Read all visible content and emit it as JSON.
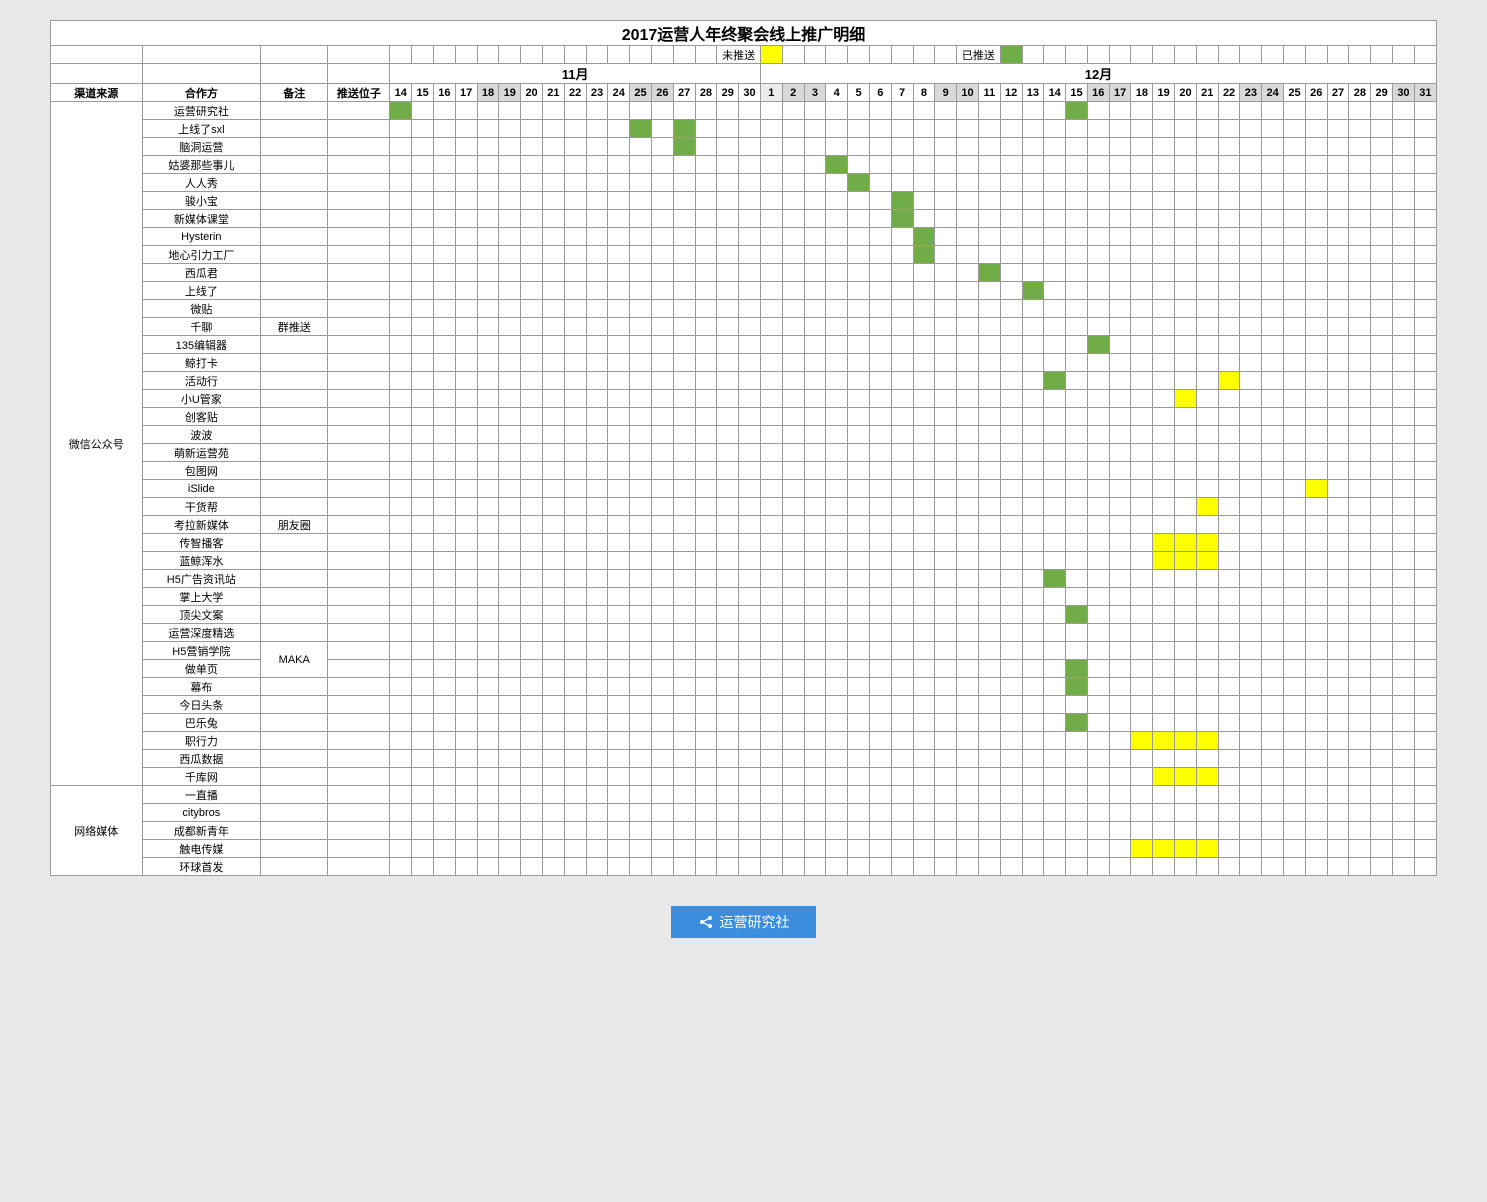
{
  "title": "2017运营人年终聚会线上推广明细",
  "legend": {
    "not_pushed": "未推送",
    "pushed": "已推送"
  },
  "months": {
    "nov": "11月",
    "dec": "12月"
  },
  "headers": {
    "source": "渠道来源",
    "partner": "合作方",
    "note": "备注",
    "push_slot": "推送位子"
  },
  "nov_days": [
    14,
    15,
    16,
    17,
    18,
    19,
    20,
    21,
    22,
    23,
    24,
    25,
    26,
    27,
    28,
    29,
    30
  ],
  "dec_days": [
    1,
    2,
    3,
    4,
    5,
    6,
    7,
    8,
    9,
    10,
    11,
    12,
    13,
    14,
    15,
    16,
    17,
    18,
    19,
    20,
    21,
    22,
    23,
    24,
    25,
    26,
    27,
    28,
    29,
    30,
    31
  ],
  "shade_days": [
    "11-18",
    "11-19",
    "11-25",
    "11-26",
    "12-2",
    "12-3",
    "12-9",
    "12-10",
    "12-16",
    "12-17",
    "12-23",
    "12-24",
    "12-30",
    "12-31"
  ],
  "shade_header_light": [
    "12-1"
  ],
  "groups": [
    {
      "source": "微信公众号",
      "rows": [
        {
          "partner": "运营研究社",
          "note": "",
          "cells": {
            "11-14": "green",
            "12-15": "green"
          }
        },
        {
          "partner": "上线了sxl",
          "note": "",
          "cells": {
            "11-25": "green",
            "11-27": "green"
          }
        },
        {
          "partner": "脑洞运营",
          "note": "",
          "cells": {
            "11-27": "green"
          }
        },
        {
          "partner": "姑婆那些事儿",
          "note": "",
          "cells": {
            "12-4": "green"
          }
        },
        {
          "partner": "人人秀",
          "note": "",
          "cells": {
            "12-5": "green"
          }
        },
        {
          "partner": "骏小宝",
          "note": "",
          "cells": {
            "12-7": "green"
          }
        },
        {
          "partner": "新媒体课堂",
          "note": "",
          "cells": {
            "12-7": "green"
          }
        },
        {
          "partner": "Hysterin",
          "note": "",
          "cells": {
            "12-8": "green"
          }
        },
        {
          "partner": "地心引力工厂",
          "note": "",
          "cells": {
            "12-8": "green"
          }
        },
        {
          "partner": "西瓜君",
          "note": "",
          "cells": {
            "12-11": "green"
          }
        },
        {
          "partner": "上线了",
          "note": "",
          "cells": {
            "12-13": "green"
          }
        },
        {
          "partner": "微贴",
          "note": "",
          "cells": {}
        },
        {
          "partner": "千聊",
          "note": "群推送",
          "cells": {}
        },
        {
          "partner": "135编辑器",
          "note": "",
          "cells": {
            "12-16": "green"
          }
        },
        {
          "partner": "鲸打卡",
          "note": "",
          "cells": {}
        },
        {
          "partner": "活动行",
          "note": "",
          "cells": {
            "12-14": "green",
            "12-22": "yellow"
          }
        },
        {
          "partner": "小U管家",
          "note": "",
          "cells": {
            "12-20": "yellow"
          }
        },
        {
          "partner": "创客贴",
          "note": "",
          "cells": {}
        },
        {
          "partner": "波波",
          "note": "",
          "cells": {}
        },
        {
          "partner": "萌新运营苑",
          "note": "",
          "cells": {}
        },
        {
          "partner": "包图网",
          "note": "",
          "cells": {}
        },
        {
          "partner": "iSlide",
          "note": "",
          "cells": {
            "12-26": "yellow"
          }
        },
        {
          "partner": "干货帮",
          "note": "",
          "cells": {
            "12-21": "yellow"
          }
        },
        {
          "partner": "考拉新媒体",
          "note": "朋友圈",
          "cells": {}
        },
        {
          "partner": "传智播客",
          "note": "",
          "cells": {
            "12-19": "yellow",
            "12-20": "yellow",
            "12-21": "yellow"
          }
        },
        {
          "partner": "蓝鲸浑水",
          "note": "",
          "cells": {
            "12-19": "yellow",
            "12-20": "yellow",
            "12-21": "yellow"
          }
        },
        {
          "partner": "H5广告资讯站",
          "note": "",
          "cells": {
            "12-14": "green"
          }
        },
        {
          "partner": "掌上大学",
          "note": "",
          "cells": {}
        },
        {
          "partner": "顶尖文案",
          "note": "",
          "cells": {
            "12-15": "green"
          }
        },
        {
          "partner": "运营深度精选",
          "note": "",
          "cells": {}
        },
        {
          "partner": "H5营销学院",
          "note": "MAKA",
          "note_rowspan": 2,
          "cells": {}
        },
        {
          "partner": "做单页",
          "note_skip": true,
          "cells": {
            "12-15": "green"
          }
        },
        {
          "partner": "幕布",
          "note": "",
          "cells": {
            "12-15": "green"
          }
        },
        {
          "partner": "今日头条",
          "note": "",
          "cells": {}
        },
        {
          "partner": "巴乐兔",
          "note": "",
          "cells": {
            "12-15": "green"
          }
        },
        {
          "partner": "职行力",
          "note": "",
          "cells": {
            "12-18": "yellow",
            "12-19": "yellow",
            "12-20": "yellow",
            "12-21": "yellow"
          }
        },
        {
          "partner": "西瓜数据",
          "note": "",
          "cells": {}
        },
        {
          "partner": "千库网",
          "note": "",
          "cells": {
            "12-19": "yellow",
            "12-20": "yellow",
            "12-21": "yellow"
          }
        }
      ]
    },
    {
      "source": "网络媒体",
      "rows": [
        {
          "partner": "一直播",
          "note": "",
          "cells": {}
        },
        {
          "partner": "citybros",
          "note": "",
          "cells": {}
        },
        {
          "partner": "成都新青年",
          "note": "",
          "cells": {}
        },
        {
          "partner": "触电传媒",
          "note": "",
          "cells": {
            "12-18": "yellow",
            "12-19": "yellow",
            "12-20": "yellow",
            "12-21": "yellow"
          }
        },
        {
          "partner": "环球首发",
          "note": "",
          "cells": {}
        }
      ]
    }
  ],
  "footer": "运营研究社",
  "colors": {
    "green": "#70ad47",
    "yellow": "#ffff00",
    "shade": "#d9d9d9",
    "border": "#9a9a9a",
    "footer_bg": "#3b8ede"
  }
}
